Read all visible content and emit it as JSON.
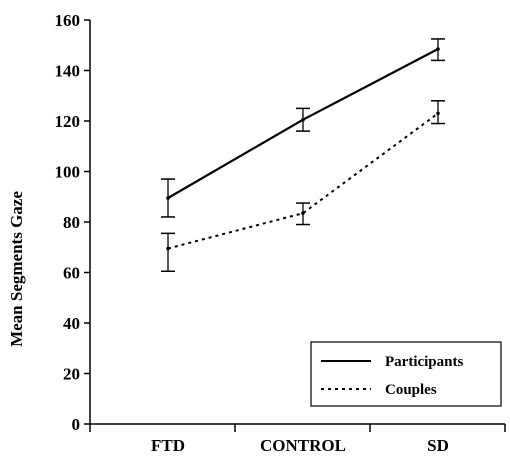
{
  "chart_data": {
    "type": "line",
    "title": "",
    "xlabel": "",
    "ylabel": "Mean Segments Gaze",
    "categories": [
      "FTD",
      "CONTROL",
      "SD"
    ],
    "ylim": [
      0,
      160
    ],
    "yticks": [
      0,
      20,
      40,
      60,
      80,
      100,
      120,
      140,
      160
    ],
    "grid": false,
    "legend_position": "bottom-right",
    "series": [
      {
        "name": "Participants",
        "style": "solid",
        "values": [
          89.5,
          120.5,
          148.5
        ],
        "error_low": [
          82,
          116,
          144
        ],
        "error_high": [
          97,
          125,
          152.5
        ]
      },
      {
        "name": "Couples",
        "style": "dotted",
        "values": [
          69.5,
          83.5,
          123
        ],
        "error_low": [
          60.5,
          79,
          119
        ],
        "error_high": [
          75.5,
          87.5,
          128
        ]
      }
    ]
  }
}
